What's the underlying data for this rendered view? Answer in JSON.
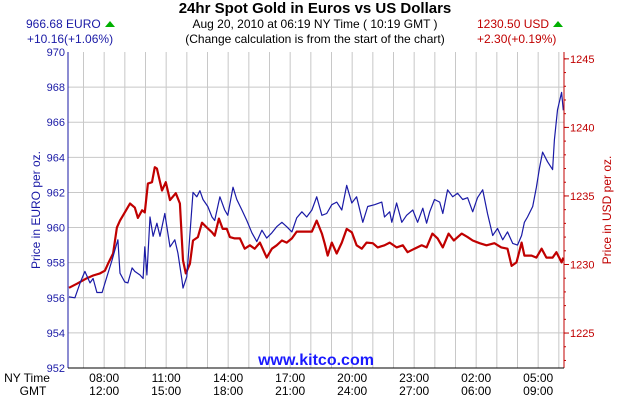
{
  "header": {
    "title": "24hr Spot Gold in Euros vs US Dollars",
    "timestamp": "Aug 20, 2010 at 06:19 NY Time ( 10:19 GMT )",
    "note": "(Change calculation is from the start of the chart)",
    "euro_price": "966.68 EURO",
    "euro_change": "+10.16(+1.06%)",
    "usd_price": "1230.50 USD",
    "usd_change": "+2.30(+0.19%)",
    "up_icon": "green-triangle-up"
  },
  "watermark": "www.kitco.com",
  "colors": {
    "euro": "#1a1aa6",
    "usd": "#c00000",
    "grid": "#c8c8c8",
    "up": "#00b000"
  },
  "chart_data": {
    "type": "line",
    "title": "24hr Spot Gold in Euros vs US Dollars",
    "ylabel_left": "Price in EURO per oz.",
    "ylabel_right": "Price in USD per oz.",
    "x_row_labels": [
      "NY Time",
      "GMT"
    ],
    "x_ticks_ny": [
      "08:00",
      "11:00",
      "14:00",
      "17:00",
      "20:00",
      "23:00",
      "02:00",
      "05:00"
    ],
    "x_ticks_gmt": [
      "12:00",
      "15:00",
      "18:00",
      "21:00",
      "24:00",
      "27:00",
      "06:00",
      "09:00"
    ],
    "x_range_ny": [
      "06:15",
      "06:15 (+1 day)"
    ],
    "ylim_left": [
      952,
      970
    ],
    "y_ticks_left": [
      "970",
      "968",
      "966",
      "964",
      "962",
      "960",
      "958",
      "956",
      "954",
      "952"
    ],
    "ylim_right": [
      1222.45,
      1245.5
    ],
    "y_ticks_right": [
      "1245",
      "1240",
      "1235",
      "1230",
      "1225"
    ],
    "grid": true,
    "series": [
      {
        "name": "EURO",
        "axis": "left",
        "points": [
          [
            "06:18",
            956.05
          ],
          [
            "06:35",
            956.0
          ],
          [
            "06:50",
            956.85
          ],
          [
            "07:04",
            957.5
          ],
          [
            "07:19",
            956.85
          ],
          [
            "07:28",
            957.1
          ],
          [
            "07:39",
            956.3
          ],
          [
            "07:54",
            956.3
          ],
          [
            "08:08",
            957.2
          ],
          [
            "08:23",
            958.15
          ],
          [
            "08:31",
            958.7
          ],
          [
            "08:40",
            959.3
          ],
          [
            "08:46",
            957.4
          ],
          [
            "09:00",
            956.9
          ],
          [
            "09:09",
            956.85
          ],
          [
            "09:21",
            957.7
          ],
          [
            "09:29",
            957.5
          ],
          [
            "09:44",
            957.3
          ],
          [
            "09:53",
            957.1
          ],
          [
            "09:58",
            958.9
          ],
          [
            "10:04",
            957.3
          ],
          [
            "10:13",
            960.6
          ],
          [
            "10:22",
            959.5
          ],
          [
            "10:33",
            960.25
          ],
          [
            "10:42",
            959.5
          ],
          [
            "10:56",
            960.8
          ],
          [
            "11:11",
            958.9
          ],
          [
            "11:25",
            959.3
          ],
          [
            "11:34",
            958.55
          ],
          [
            "11:46",
            957.0
          ],
          [
            "11:49",
            956.55
          ],
          [
            "12:00",
            957.2
          ],
          [
            "12:18",
            962.0
          ],
          [
            "12:29",
            961.75
          ],
          [
            "12:38",
            962.1
          ],
          [
            "12:47",
            961.6
          ],
          [
            "13:01",
            961.2
          ],
          [
            "13:13",
            960.6
          ],
          [
            "13:21",
            960.4
          ],
          [
            "13:36",
            961.75
          ],
          [
            "13:50",
            961.0
          ],
          [
            "13:59",
            960.7
          ],
          [
            "14:14",
            962.3
          ],
          [
            "14:25",
            961.6
          ],
          [
            "14:40",
            961.0
          ],
          [
            "14:54",
            960.4
          ],
          [
            "15:09",
            959.7
          ],
          [
            "15:23",
            959.2
          ],
          [
            "15:38",
            959.85
          ],
          [
            "15:52",
            959.4
          ],
          [
            "16:07",
            959.7
          ],
          [
            "16:21",
            960.05
          ],
          [
            "16:36",
            960.3
          ],
          [
            "16:50",
            960.05
          ],
          [
            "17:05",
            959.75
          ],
          [
            "17:19",
            960.55
          ],
          [
            "17:34",
            960.9
          ],
          [
            "17:48",
            960.6
          ],
          [
            "18:03",
            961.0
          ],
          [
            "18:17",
            961.75
          ],
          [
            "18:32",
            960.7
          ],
          [
            "18:46",
            960.8
          ],
          [
            "19:01",
            961.3
          ],
          [
            "19:15",
            961.45
          ],
          [
            "19:30",
            961.0
          ],
          [
            "19:44",
            962.4
          ],
          [
            "19:59",
            961.4
          ],
          [
            "20:13",
            961.75
          ],
          [
            "20:31",
            960.3
          ],
          [
            "20:45",
            961.2
          ],
          [
            "21:05",
            961.3
          ],
          [
            "21:26",
            961.45
          ],
          [
            "21:34",
            960.6
          ],
          [
            "21:49",
            960.9
          ],
          [
            "21:55",
            960.3
          ],
          [
            "22:09",
            961.4
          ],
          [
            "22:24",
            960.3
          ],
          [
            "22:38",
            960.7
          ],
          [
            "22:56",
            961.0
          ],
          [
            "23:10",
            960.3
          ],
          [
            "23:25",
            961.1
          ],
          [
            "23:36",
            960.25
          ],
          [
            "23:45",
            960.9
          ],
          [
            "23:59",
            961.6
          ],
          [
            "00:14",
            961.45
          ],
          [
            "00:23",
            960.8
          ],
          [
            "00:37",
            962.15
          ],
          [
            "00:52",
            961.75
          ],
          [
            "01:06",
            961.95
          ],
          [
            "01:21",
            961.6
          ],
          [
            "01:35",
            961.7
          ],
          [
            "01:50",
            960.9
          ],
          [
            "02:04",
            961.7
          ],
          [
            "02:19",
            962.15
          ],
          [
            "02:33",
            960.8
          ],
          [
            "02:48",
            959.55
          ],
          [
            "03:02",
            959.95
          ],
          [
            "03:17",
            959.3
          ],
          [
            "03:31",
            959.75
          ],
          [
            "03:46",
            959.1
          ],
          [
            "04:00",
            959.0
          ],
          [
            "04:12",
            959.55
          ],
          [
            "04:20",
            960.3
          ],
          [
            "04:29",
            960.6
          ],
          [
            "04:44",
            961.2
          ],
          [
            "04:55",
            962.3
          ],
          [
            "05:04",
            963.4
          ],
          [
            "05:13",
            964.3
          ],
          [
            "05:27",
            963.75
          ],
          [
            "05:42",
            963.3
          ],
          [
            "05:47",
            965.0
          ],
          [
            "05:56",
            966.7
          ],
          [
            "06:08",
            967.7
          ],
          [
            "06:13",
            966.68
          ]
        ]
      },
      {
        "name": "USD",
        "axis": "right",
        "points": [
          [
            "06:18",
            1228.3
          ],
          [
            "06:41",
            1228.6
          ],
          [
            "07:10",
            1229.0
          ],
          [
            "07:28",
            1229.2
          ],
          [
            "07:48",
            1229.35
          ],
          [
            "08:02",
            1229.55
          ],
          [
            "08:11",
            1230.05
          ],
          [
            "08:26",
            1230.8
          ],
          [
            "08:37",
            1232.7
          ],
          [
            "08:46",
            1233.2
          ],
          [
            "09:00",
            1233.8
          ],
          [
            "09:15",
            1234.45
          ],
          [
            "09:29",
            1234.15
          ],
          [
            "09:38",
            1233.4
          ],
          [
            "09:50",
            1233.95
          ],
          [
            "09:58",
            1233.8
          ],
          [
            "10:07",
            1235.9
          ],
          [
            "10:19",
            1236.0
          ],
          [
            "10:27",
            1237.1
          ],
          [
            "10:33",
            1237.0
          ],
          [
            "10:48",
            1235.4
          ],
          [
            "10:59",
            1236.0
          ],
          [
            "11:11",
            1234.7
          ],
          [
            "11:28",
            1235.2
          ],
          [
            "11:40",
            1234.45
          ],
          [
            "11:49",
            1230.3
          ],
          [
            "11:57",
            1229.35
          ],
          [
            "12:09",
            1230.05
          ],
          [
            "12:18",
            1231.75
          ],
          [
            "12:32",
            1232.0
          ],
          [
            "12:44",
            1233.05
          ],
          [
            "12:58",
            1232.7
          ],
          [
            "13:13",
            1232.35
          ],
          [
            "13:21",
            1232.1
          ],
          [
            "13:33",
            1233.35
          ],
          [
            "13:44",
            1232.6
          ],
          [
            "13:56",
            1232.6
          ],
          [
            "14:05",
            1232.0
          ],
          [
            "14:19",
            1231.9
          ],
          [
            "14:34",
            1231.9
          ],
          [
            "14:48",
            1231.15
          ],
          [
            "15:03",
            1231.4
          ],
          [
            "15:17",
            1231.15
          ],
          [
            "15:32",
            1231.6
          ],
          [
            "15:52",
            1230.5
          ],
          [
            "16:07",
            1231.15
          ],
          [
            "16:21",
            1231.4
          ],
          [
            "16:36",
            1231.75
          ],
          [
            "16:50",
            1231.6
          ],
          [
            "17:05",
            1231.9
          ],
          [
            "17:19",
            1232.4
          ],
          [
            "18:03",
            1232.4
          ],
          [
            "18:17",
            1233.2
          ],
          [
            "18:32",
            1232.25
          ],
          [
            "18:40",
            1231.55
          ],
          [
            "18:49",
            1230.65
          ],
          [
            "19:01",
            1231.6
          ],
          [
            "19:15",
            1230.8
          ],
          [
            "19:30",
            1231.6
          ],
          [
            "19:44",
            1232.6
          ],
          [
            "19:59",
            1232.35
          ],
          [
            "20:13",
            1231.4
          ],
          [
            "20:28",
            1231.15
          ],
          [
            "20:42",
            1231.6
          ],
          [
            "21:00",
            1231.55
          ],
          [
            "21:14",
            1231.25
          ],
          [
            "21:34",
            1231.4
          ],
          [
            "21:49",
            1231.6
          ],
          [
            "22:09",
            1231.25
          ],
          [
            "22:27",
            1231.4
          ],
          [
            "22:41",
            1230.9
          ],
          [
            "23:01",
            1231.15
          ],
          [
            "23:22",
            1231.4
          ],
          [
            "23:36",
            1231.25
          ],
          [
            "23:53",
            1232.25
          ],
          [
            "00:08",
            1231.9
          ],
          [
            "00:23",
            1231.25
          ],
          [
            "00:40",
            1232.25
          ],
          [
            "00:55",
            1231.75
          ],
          [
            "01:18",
            1232.25
          ],
          [
            "01:35",
            1232.0
          ],
          [
            "01:50",
            1231.75
          ],
          [
            "02:10",
            1231.55
          ],
          [
            "02:30",
            1231.4
          ],
          [
            "02:53",
            1231.55
          ],
          [
            "03:13",
            1231.25
          ],
          [
            "03:31",
            1231.15
          ],
          [
            "03:43",
            1229.9
          ],
          [
            "03:57",
            1230.15
          ],
          [
            "04:12",
            1231.6
          ],
          [
            "04:20",
            1230.65
          ],
          [
            "04:41",
            1230.65
          ],
          [
            "04:55",
            1230.5
          ],
          [
            "05:10",
            1231.15
          ],
          [
            "05:24",
            1230.5
          ],
          [
            "05:42",
            1230.5
          ],
          [
            "05:53",
            1230.9
          ],
          [
            "06:08",
            1230.15
          ],
          [
            "06:13",
            1230.5
          ]
        ]
      }
    ]
  }
}
